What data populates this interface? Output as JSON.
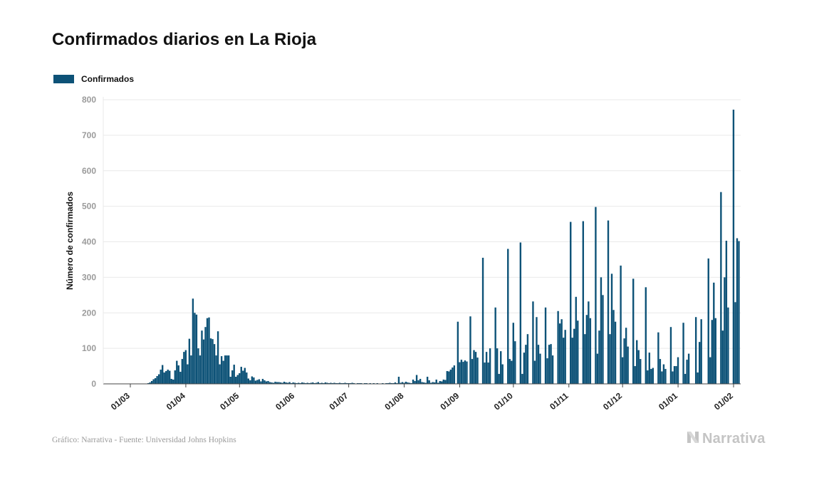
{
  "header": {
    "title": "Confirmados diarios en La Rioja"
  },
  "colors": {
    "series": "#0d5277",
    "grid": "#e9e9e9",
    "tick": "#9b9b9b",
    "brand": "#c4c4c4"
  },
  "footer": {
    "source": "Gráfico: Narrativa - Fuente: Universidad Johns Hopkins",
    "brand": "Narrativa",
    "brand_icon": "narrativa-logo-icon"
  },
  "chart_data": {
    "type": "bar",
    "title": "Confirmados diarios en La Rioja",
    "xlabel": "",
    "ylabel": "Número de confirmados",
    "ylim": [
      0,
      800
    ],
    "yticks": [
      "0",
      "100",
      "200",
      "300",
      "400",
      "500",
      "600",
      "700",
      "800"
    ],
    "xticks": [
      "01/03",
      "01/04",
      "01/05",
      "01/06",
      "01/07",
      "01/08",
      "01/09",
      "01/10",
      "01/11",
      "01/12",
      "01/01",
      "01/02"
    ],
    "grid": true,
    "legend_position": "top-left",
    "x_range": [
      "2020-03-01",
      "2021-02-01"
    ],
    "series": [
      {
        "name": "Confirmados",
        "start_date": "2020-03-01",
        "values": [
          0,
          0,
          0,
          0,
          0,
          0,
          0,
          0,
          0,
          0,
          2,
          4,
          8,
          13,
          16,
          22,
          27,
          40,
          53,
          32,
          36,
          40,
          37,
          14,
          12,
          38,
          65,
          52,
          34,
          70,
          90,
          95,
          55,
          127,
          80,
          240,
          200,
          195,
          100,
          80,
          150,
          125,
          160,
          185,
          187,
          128,
          126,
          112,
          80,
          148,
          55,
          78,
          65,
          80,
          80,
          80,
          20,
          38,
          54,
          20,
          25,
          30,
          48,
          37,
          45,
          32,
          15,
          10,
          21,
          18,
          9,
          11,
          13,
          7,
          14,
          10,
          7,
          8,
          5,
          4,
          3,
          6,
          5,
          5,
          4,
          3,
          6,
          4,
          3,
          5,
          2,
          4,
          3,
          2,
          3,
          2,
          4,
          3,
          2,
          3,
          2,
          3,
          4,
          2,
          3,
          5,
          2,
          3,
          2,
          4,
          3,
          2,
          3,
          2,
          3,
          2,
          2,
          3,
          2,
          2,
          3,
          2,
          2,
          2,
          3,
          2,
          1,
          2,
          2,
          2,
          1,
          2,
          2,
          1,
          2,
          1,
          2,
          1,
          2,
          1,
          1,
          2,
          1,
          2,
          2,
          3,
          2,
          2,
          4,
          2,
          20,
          3,
          5,
          3,
          6,
          4,
          3,
          2,
          12,
          8,
          25,
          10,
          14,
          5,
          4,
          3,
          20,
          10,
          3,
          5,
          4,
          12,
          3,
          8,
          7,
          12,
          11,
          36,
          35,
          40,
          46,
          52,
          0,
          175,
          61,
          68,
          62,
          66,
          63,
          0,
          190,
          70,
          95,
          90,
          74,
          0,
          0,
          355,
          60,
          90,
          60,
          100,
          0,
          0,
          215,
          100,
          28,
          92,
          55,
          0,
          0,
          380,
          70,
          65,
          172,
          120,
          0,
          0,
          398,
          28,
          88,
          110,
          140,
          0,
          0,
          232,
          65,
          188,
          110,
          85,
          0,
          0,
          215,
          72,
          110,
          112,
          80,
          0,
          0,
          205,
          170,
          182,
          130,
          152,
          0,
          0,
          456,
          130,
          155,
          245,
          178,
          0,
          0,
          458,
          140,
          194,
          232,
          185,
          0,
          0,
          498,
          85,
          150,
          300,
          250,
          0,
          0,
          460,
          140,
          310,
          208,
          175,
          0,
          0,
          333,
          75,
          128,
          158,
          105,
          0,
          0,
          296,
          50,
          123,
          95,
          70,
          0,
          0,
          272,
          38,
          88,
          42,
          45,
          0,
          0,
          145,
          70,
          35,
          55,
          42,
          0,
          0,
          160,
          35,
          50,
          50,
          75,
          0,
          0,
          172,
          28,
          68,
          85,
          0,
          0,
          0,
          188,
          32,
          118,
          182,
          0,
          0,
          0,
          353,
          75,
          180,
          285,
          185,
          0,
          0,
          540,
          150,
          300,
          403,
          215,
          0,
          0,
          772,
          230,
          410,
          402
        ]
      }
    ]
  }
}
